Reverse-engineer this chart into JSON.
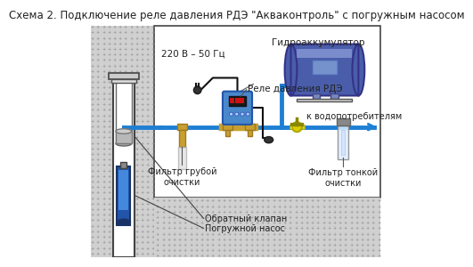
{
  "title": "Схема 2. Подключение реле давления РДЭ \"Акваконтроль\" с погружным насосом",
  "title_fontsize": 8.5,
  "bg_color": "#ffffff",
  "labels": {
    "voltage": "220 В – 50 Гц",
    "relay": "Реле давления РДЭ",
    "accumulator": "Гидроаккумулятор",
    "consumers": "к водопотребителям",
    "coarse_filter": "Фильтр грубой\nочистки",
    "fine_filter": "Фильтр тонкой\nочистки",
    "check_valve": "Обратный клапан",
    "pump": "Погружной насос"
  },
  "pipe_color": "#1e7fd4",
  "pipe_lw": 3.5,
  "text_color": "#222222",
  "border_color": "#444444",
  "soil_color": "#d0d0d0",
  "brick_light": "#cccccc",
  "brick_dark": "#aaaaaa",
  "accumulator_body": "#4a5daa",
  "accumulator_light": "#7080cc",
  "accumulator_highlight": "#aabbee",
  "relay_body": "#4a88cc",
  "relay_display": "#111111",
  "led_color": "#ee2222",
  "brass_color": "#c8a030",
  "brass_dark": "#a07820",
  "valve_yellow": "#ddcc00",
  "fine_filter_body": "#ddeeff",
  "fine_filter_top": "#888888",
  "wire_color": "#111111",
  "plug_color": "#333333",
  "pump_blue": "#2255aa",
  "pump_light": "#4477bb",
  "check_silver": "#aaaaaa",
  "wall_line": "#555555"
}
